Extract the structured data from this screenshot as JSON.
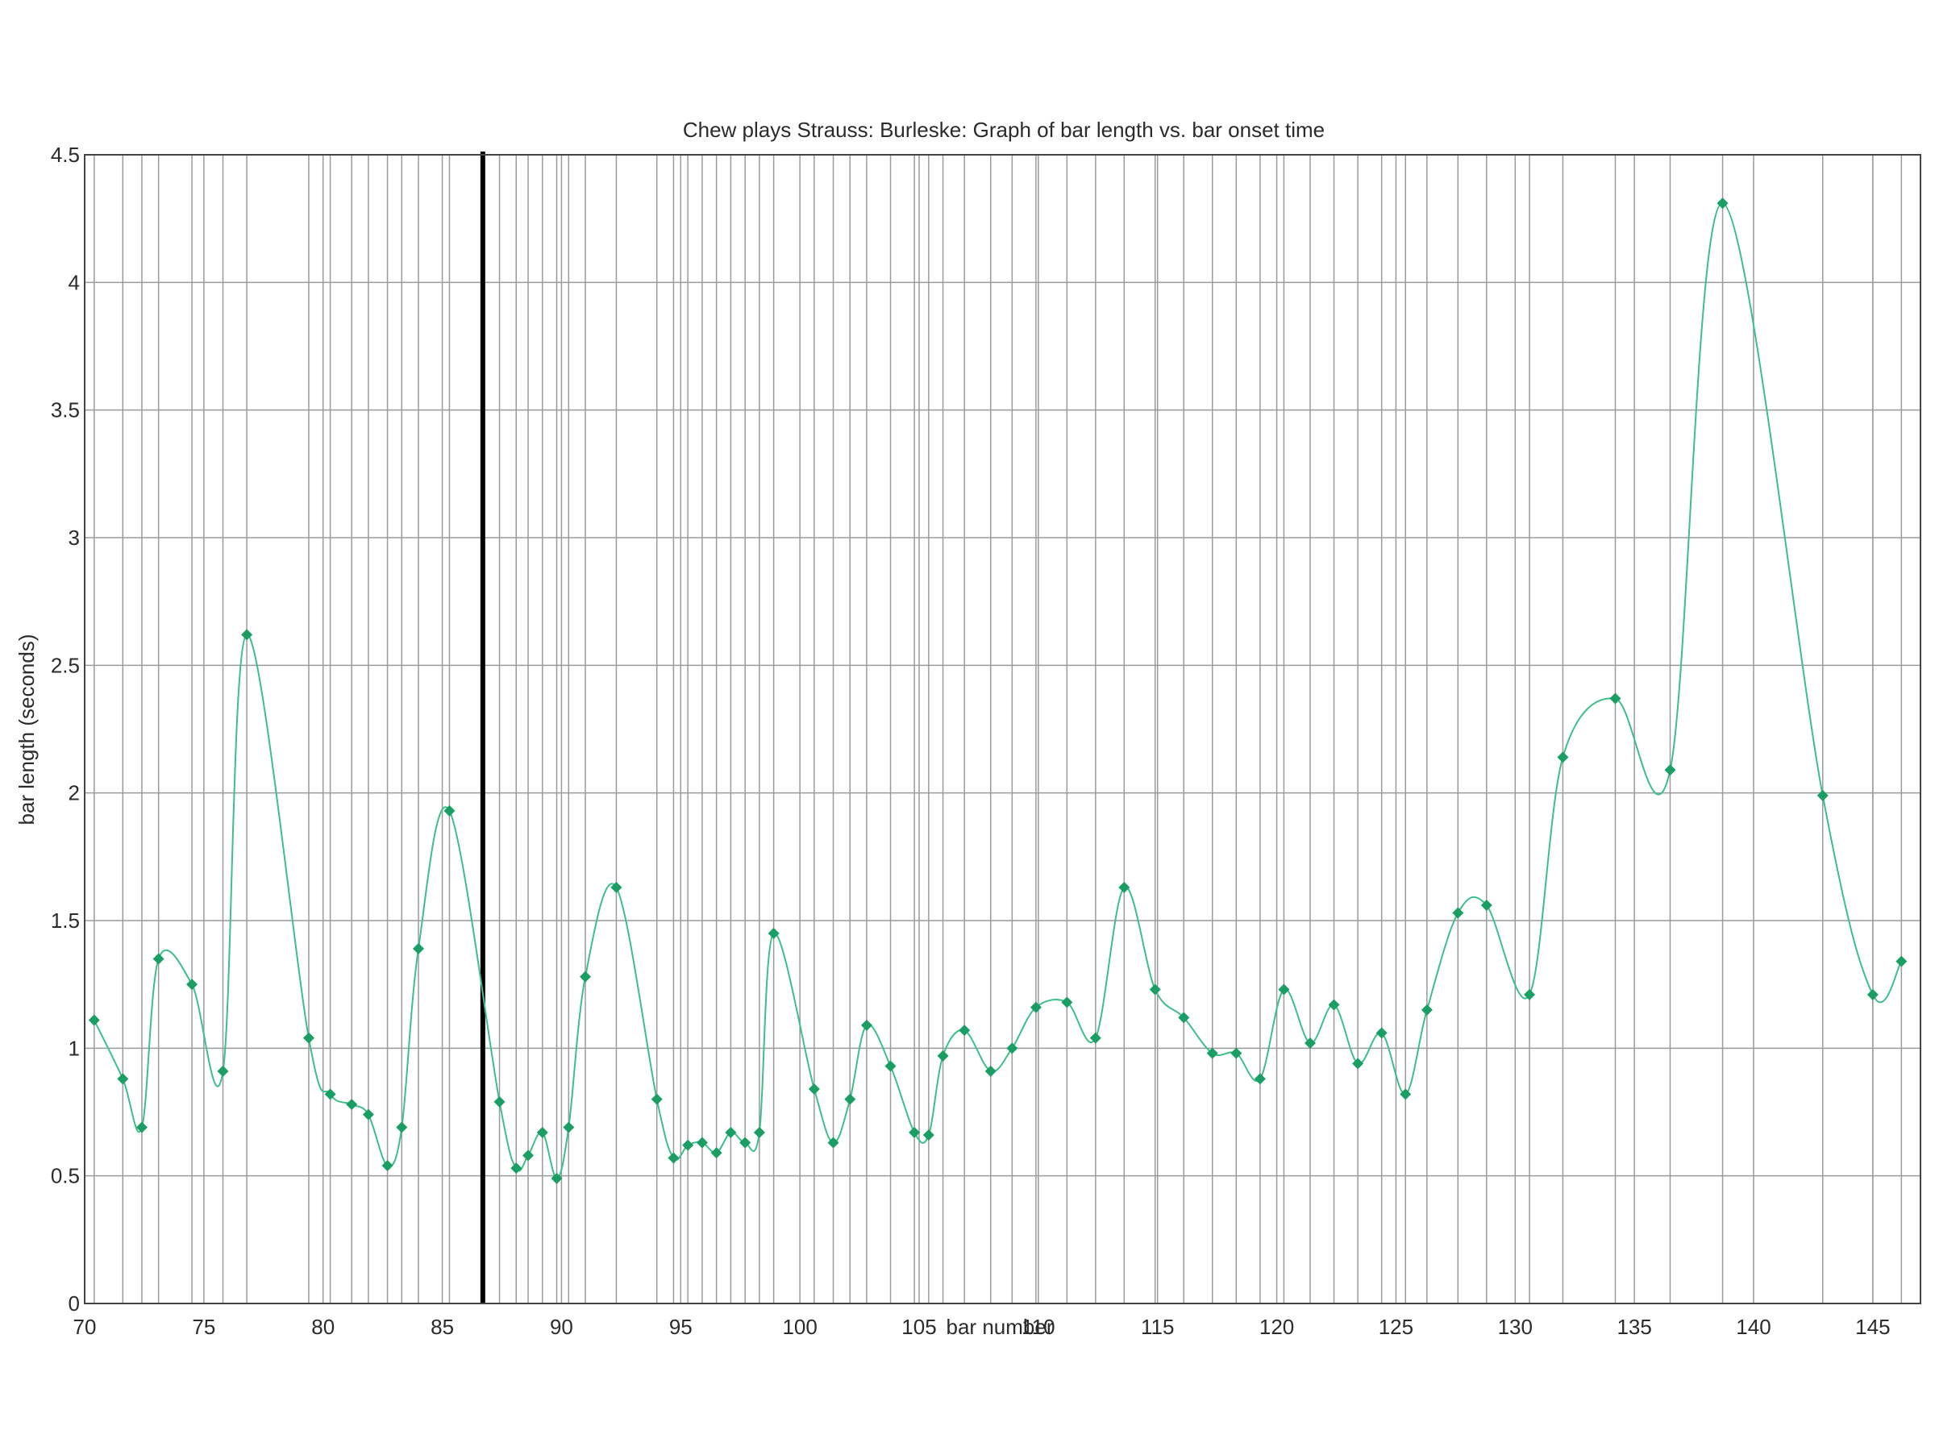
{
  "chart_data": {
    "type": "line",
    "title": "Chew plays Strauss: Burleske: Graph of bar length vs. bar onset time",
    "xlabel": "bar number",
    "ylabel": "bar length (seconds)",
    "xlim": [
      70,
      147
    ],
    "ylim": [
      0,
      4.5
    ],
    "x_ticks": [
      70,
      75,
      80,
      85,
      90,
      95,
      100,
      105,
      110,
      115,
      120,
      125,
      130,
      135,
      140,
      145
    ],
    "y_ticks": [
      0,
      0.5,
      1,
      1.5,
      2,
      2.5,
      3,
      3.5,
      4,
      4.5
    ],
    "grid": true,
    "marker": "diamond",
    "marker_color": "#1a9e63",
    "line_color": "#3dbf8a",
    "frame_color": "#444444",
    "highlight_line": {
      "x": 86.7,
      "color": "#000000"
    },
    "series": [
      {
        "x": [
          70.4,
          71.6,
          72.4,
          73.1,
          74.5,
          75.8,
          76.8,
          79.4,
          80.3,
          81.2,
          81.9,
          82.7,
          83.3,
          84.0,
          85.3,
          87.4,
          88.1,
          88.6,
          89.2,
          89.8,
          90.3,
          91.0,
          92.3,
          94.0,
          94.7,
          95.3,
          95.9,
          96.5,
          97.1,
          97.7,
          98.3,
          98.9,
          100.6,
          101.4,
          102.1,
          102.8,
          103.8,
          104.8,
          105.4,
          106.0,
          106.9,
          108.0,
          108.9,
          109.9,
          111.2,
          112.4,
          113.6,
          114.9,
          116.1,
          117.3,
          118.3,
          119.3,
          120.3,
          121.4,
          122.4,
          123.4,
          124.4,
          125.4,
          126.3,
          127.6,
          128.8,
          130.6,
          132.0,
          134.2,
          136.5,
          138.7,
          142.9,
          145.0,
          146.2
        ],
        "values": [
          1.11,
          0.88,
          0.69,
          1.35,
          1.25,
          0.91,
          2.62,
          1.04,
          0.82,
          0.78,
          0.74,
          0.54,
          0.69,
          1.39,
          1.93,
          0.79,
          0.53,
          0.58,
          0.67,
          0.49,
          0.69,
          1.28,
          1.63,
          0.8,
          0.57,
          0.62,
          0.63,
          0.59,
          0.67,
          0.63,
          0.67,
          1.45,
          0.84,
          0.63,
          0.8,
          1.09,
          0.93,
          0.67,
          0.66,
          0.97,
          1.07,
          0.91,
          1.0,
          1.16,
          1.18,
          1.04,
          1.63,
          1.23,
          1.12,
          0.98,
          0.98,
          0.88,
          1.23,
          1.02,
          1.17,
          0.94,
          1.06,
          0.82,
          1.15,
          1.53,
          1.56,
          1.21,
          2.14,
          2.37,
          2.09,
          4.31,
          1.99,
          1.21,
          1.34
        ]
      }
    ],
    "extra_vertical_gridlines": [
      70.4,
      71.6,
      72.4,
      73.1,
      74.5,
      75.8,
      76.8,
      79.4,
      80.3,
      81.2,
      81.9,
      82.7,
      83.3,
      84.0,
      85.3,
      87.4,
      88.1,
      88.6,
      89.2,
      89.8,
      90.3,
      91.0,
      92.3,
      94.0,
      94.7,
      95.3,
      95.9,
      96.5,
      97.1,
      97.7,
      98.3,
      98.9,
      100.6,
      101.4,
      102.1,
      102.8,
      103.8,
      104.8,
      105.4,
      106.0,
      106.9,
      108.0,
      108.9,
      109.9,
      111.2,
      112.4,
      113.6,
      114.9,
      116.1,
      117.3,
      118.3,
      119.3,
      120.3,
      121.4,
      122.4,
      123.4,
      124.4,
      125.4,
      126.3,
      127.6,
      128.8,
      130.6,
      132.0,
      134.2,
      136.5,
      138.7,
      142.9,
      145.0,
      146.2
    ]
  }
}
